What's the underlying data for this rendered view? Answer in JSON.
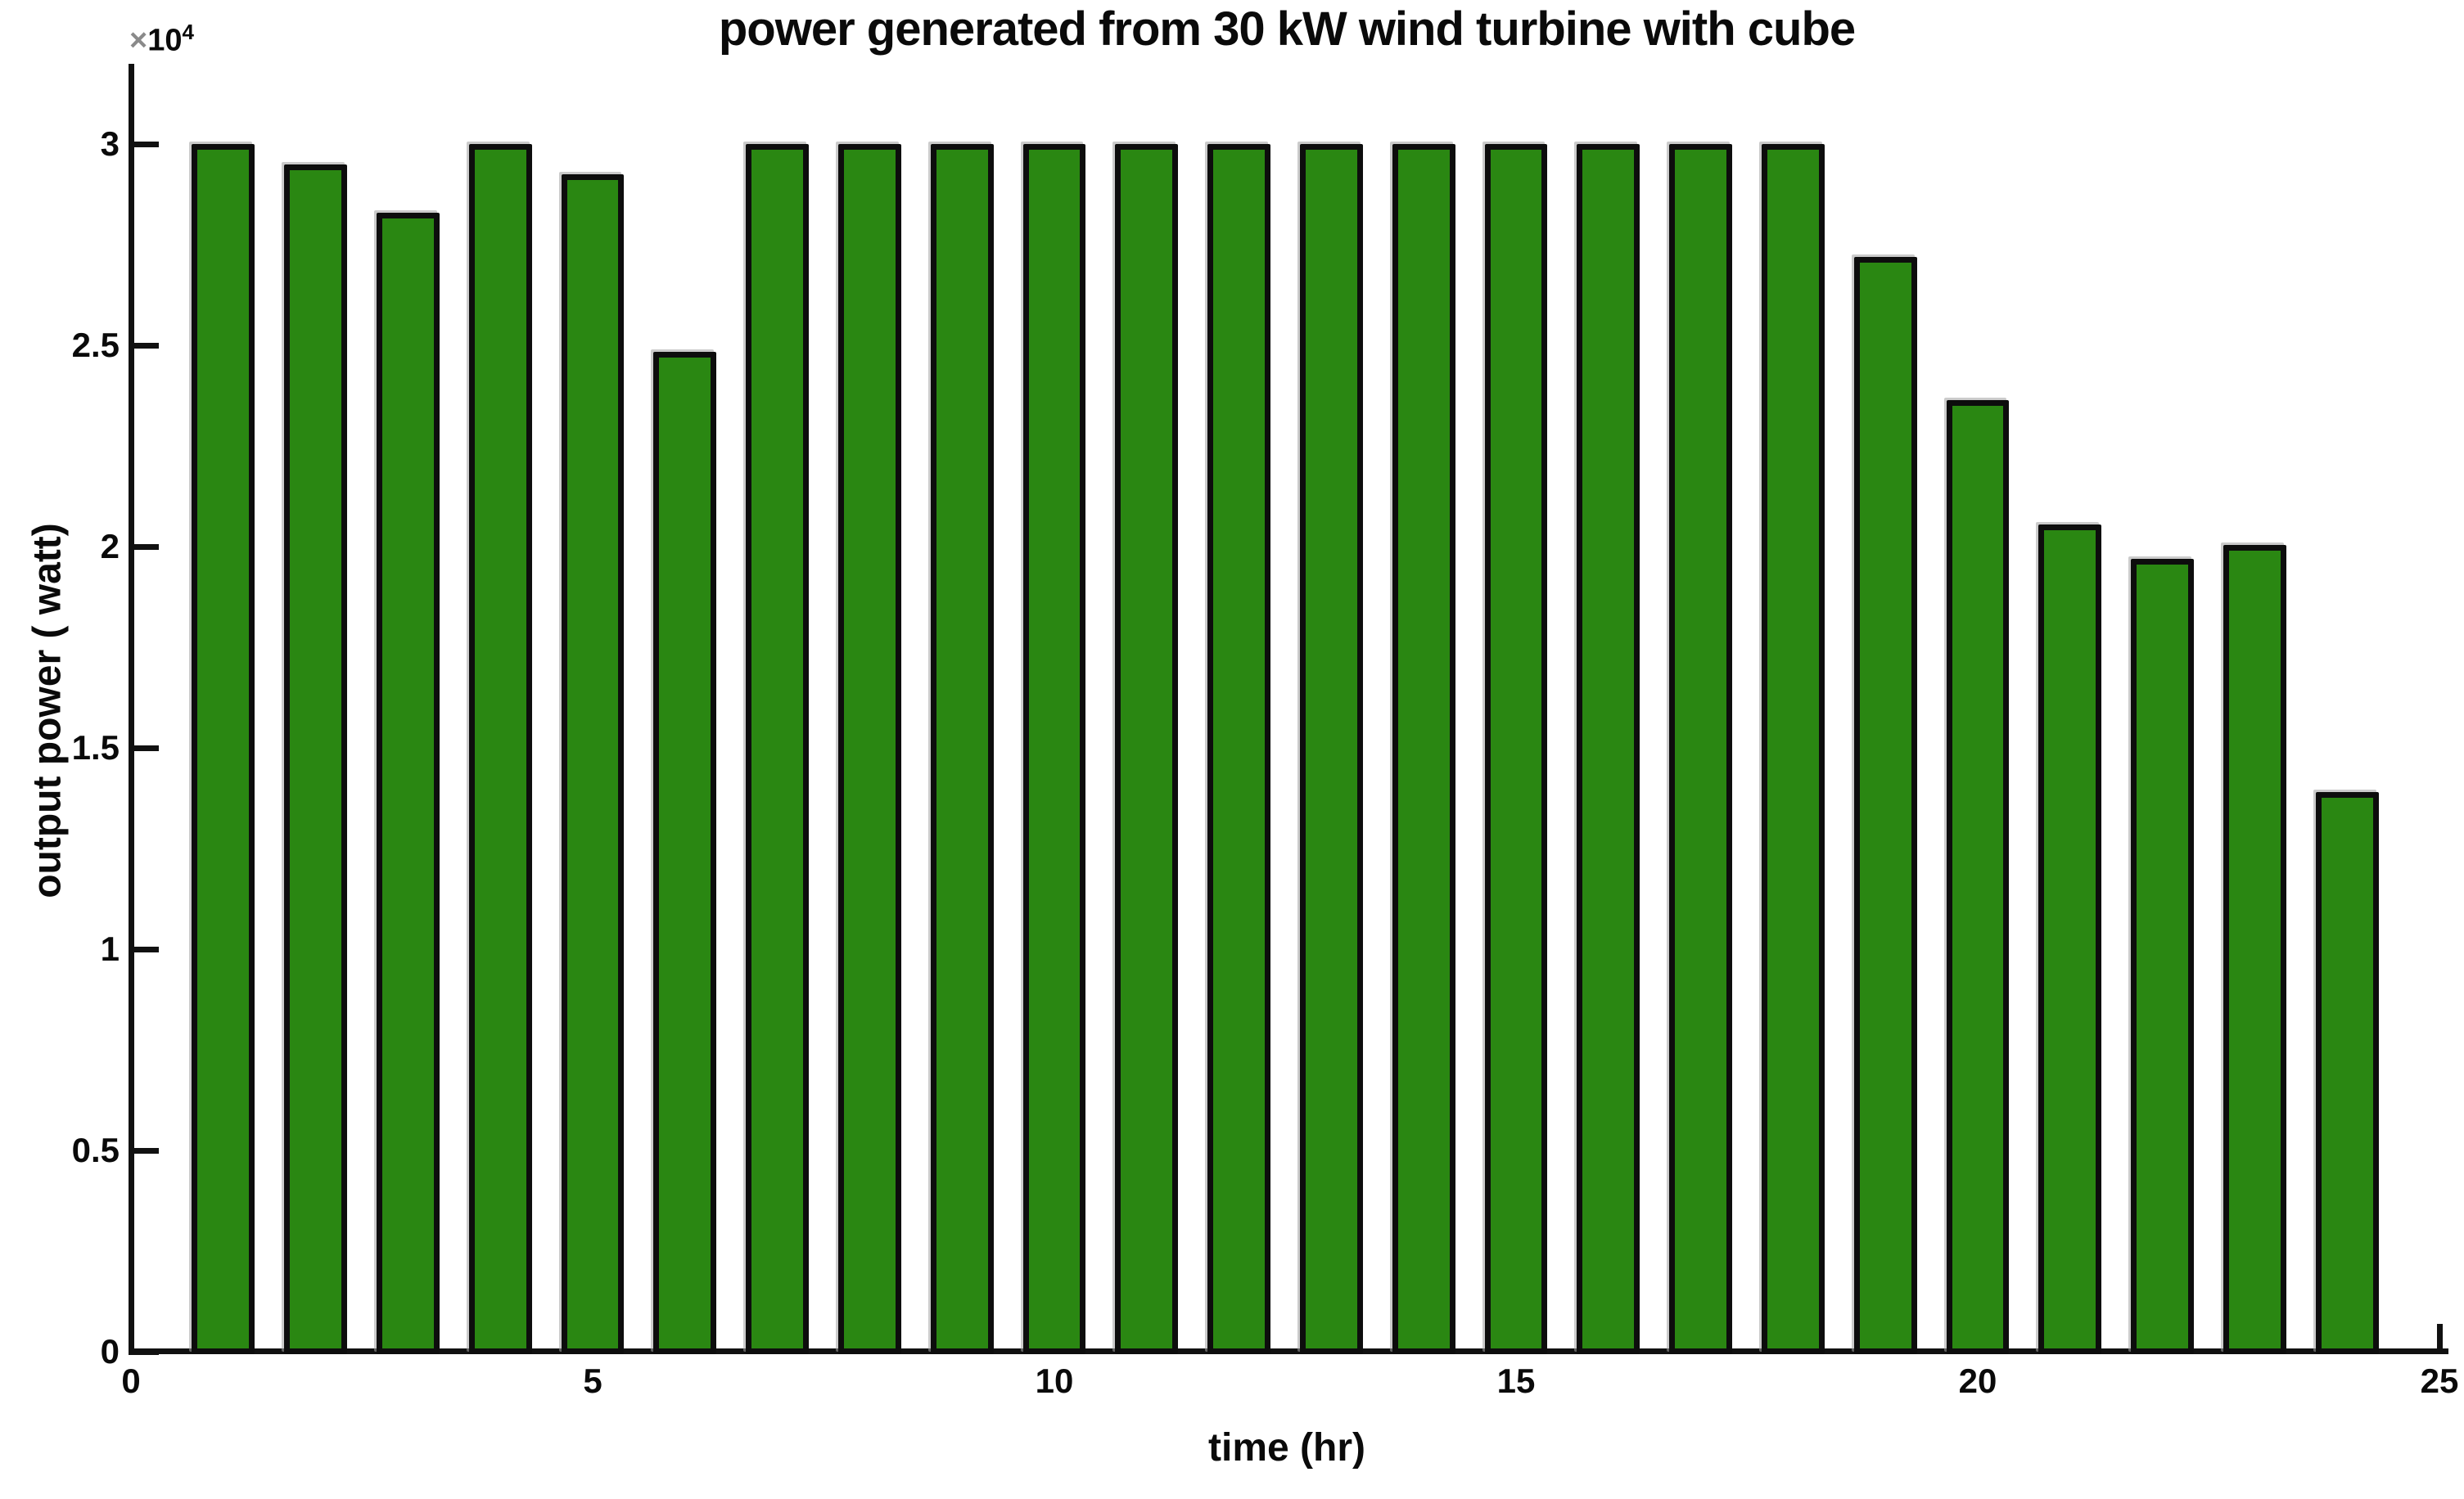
{
  "figure": {
    "title": "power generated from 30 kW wind turbine with cube",
    "xlabel": "time (hr)",
    "ylabel": "output power ( watt)",
    "y_multiplier_base": "×10",
    "y_multiplier_exp": "4",
    "background_color": "#ffffff",
    "text_color": "#0a0a0a"
  },
  "chart_data": {
    "type": "bar",
    "title": "power generated from 30 kW wind turbine with cube",
    "xlabel": "time (hr)",
    "ylabel": "output power ( watt)",
    "y_unit_note": "y axis values are in units of 10^4 watt (multiplier x10^4 shown at axis top)",
    "x": [
      1,
      2,
      3,
      4,
      5,
      6,
      7,
      8,
      9,
      10,
      11,
      12,
      13,
      14,
      15,
      16,
      17,
      18,
      19,
      20,
      21,
      22,
      23,
      24
    ],
    "values": [
      30000,
      29500,
      28300,
      30000,
      29250,
      24850,
      30000,
      30000,
      30000,
      30000,
      30000,
      30000,
      30000,
      30000,
      30000,
      30000,
      30000,
      30000,
      27200,
      23650,
      20550,
      19700,
      20050,
      13900
    ],
    "xlim": [
      0,
      25.05
    ],
    "ylim": [
      0,
      32000
    ],
    "x_ticks": [
      0,
      5,
      10,
      15,
      20,
      25
    ],
    "x_tick_labels": [
      "0",
      "5",
      "10",
      "15",
      "20",
      "25"
    ],
    "y_ticks": [
      0,
      5000,
      10000,
      15000,
      20000,
      25000,
      30000
    ],
    "y_tick_labels": [
      "0",
      "0.5",
      "1",
      "1.5",
      "2",
      "2.5",
      "3"
    ],
    "bar_width_x_units": 0.68,
    "bar_color": "#2a8712",
    "bar_edge_color": "#0d0d0d",
    "grid": false,
    "legend": null,
    "axis_box": "left-bottom-only",
    "tick_direction": "in"
  }
}
